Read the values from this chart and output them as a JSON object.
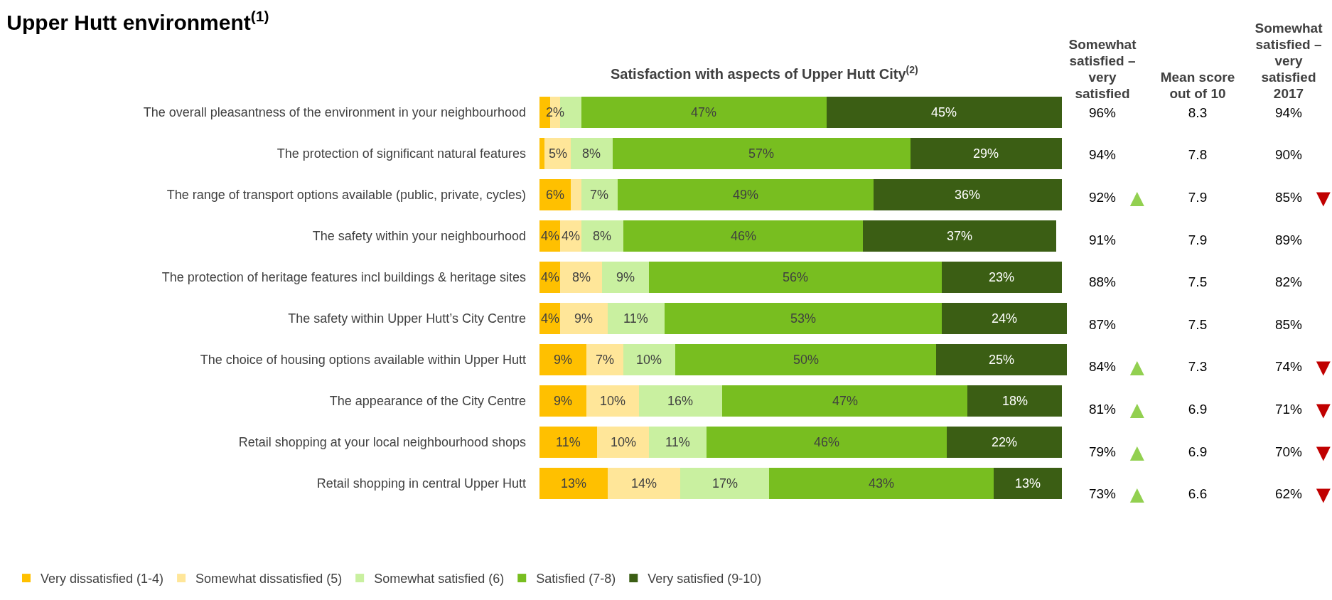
{
  "chart_data": [
    {
      "type": "bar",
      "title": "Upper Hutt environment$^{(1)}$",
      "subtitle": "Satisfaction with aspects of Upper Hutt City$^{(2)}$",
      "orientation": "horizontal",
      "stacked": true,
      "legend": "bottom left",
      "grid": false,
      "tick_labels": "y",
      "categories": [
        "The overall pleasantness of the environment in your neighbourhood",
        "The protection of significant natural features",
        "The range of transport options available (public, private, cycles)",
        "The safety within your neighbourhood",
        "The protection of heritage features incl buildings & heritage sites",
        "The safety within Upper Hutt’s City Centre",
        "The choice of housing options available within Upper Hutt",
        "The appearance of the City Centre",
        "Retail shopping at your local neighbourhood shops",
        "Retail shopping in central Upper Hutt"
      ],
      "series": [
        {
          "name": "Very dissatisfied (1-4)",
          "color": "#ffc000",
          "values": [
            2,
            1,
            6,
            4,
            4,
            4,
            9,
            9,
            11,
            13
          ],
          "value_labels": [
            null,
            null,
            "6%",
            "4%",
            "4%",
            "4%",
            "9%",
            "9%",
            "11%",
            "13%"
          ]
        },
        {
          "name": "Somewhat dissatisfied (5)",
          "color": "#ffe699",
          "values": [
            2,
            5,
            2,
            4,
            8,
            9,
            7,
            10,
            10,
            14
          ],
          "value_labels": [
            "2%",
            "5%",
            null,
            "4%",
            "8%",
            "9%",
            "7%",
            "10%",
            "10%",
            "14%"
          ]
        },
        {
          "name": "Somewhat satisfied (6)",
          "color": "#c9f0a0",
          "values": [
            4,
            8,
            7,
            8,
            9,
            11,
            10,
            16,
            11,
            17
          ],
          "value_labels": [
            null,
            "8%",
            "7%",
            "8%",
            "9%",
            "11%",
            "10%",
            "16%",
            "11%",
            "17%"
          ]
        },
        {
          "name": "Satisfied (7-8)",
          "color": "#78be20",
          "values": [
            47,
            57,
            49,
            46,
            56,
            53,
            50,
            47,
            46,
            43
          ],
          "value_labels": [
            "47%",
            "57%",
            "49%",
            "46%",
            "56%",
            "53%",
            "50%",
            "47%",
            "46%",
            "43%"
          ]
        },
        {
          "name": "Very satisfied (9-10)",
          "color": "#3b5e14",
          "values": [
            45,
            29,
            36,
            37,
            23,
            24,
            25,
            18,
            22,
            13
          ],
          "value_labels": [
            "45%",
            "29%",
            "36%",
            "37%",
            "23%",
            "24%",
            "25%",
            "18%",
            "22%",
            "13%"
          ]
        }
      ]
    },
    {
      "type": "other",
      "title": "Somewhat satisfied – very satisfied",
      "annotations": [
        "▲"
      ],
      "colors": [
        null,
        null,
        "#92d050",
        null,
        null,
        null,
        "#92d050",
        "#92d050",
        "#92d050",
        "#92d050"
      ],
      "categories": [
        null,
        null,
        null,
        null,
        null,
        null,
        null,
        null,
        null,
        null
      ],
      "values": [
        96,
        94,
        92,
        91,
        88,
        87,
        84,
        81,
        79,
        73
      ],
      "value_labels": [
        "96%",
        "94%",
        "92%",
        "91%",
        "88%",
        "87%",
        "84%",
        "81%",
        "79%",
        "73%"
      ]
    },
    {
      "type": "other",
      "title": "Mean score out of 10",
      "categories": [
        null,
        null,
        null,
        null,
        null,
        null,
        null,
        null,
        null,
        null
      ],
      "values": [
        8.3,
        7.8,
        7.9,
        7.9,
        7.5,
        7.5,
        7.3,
        6.9,
        6.9,
        6.6
      ],
      "data_labels": true
    },
    {
      "type": "other",
      "title": "Somewhat satisfied – very satisfied 2017",
      "annotations": [
        "▼"
      ],
      "colors": [
        null,
        null,
        "#c00000",
        null,
        null,
        null,
        "#c00000",
        "#c00000",
        "#c00000",
        "#c00000"
      ],
      "categories": [
        null,
        null,
        null,
        null,
        null,
        null,
        null,
        null,
        null,
        null
      ],
      "values": [
        94,
        90,
        85,
        89,
        82,
        85,
        74,
        71,
        70,
        62
      ],
      "value_labels": [
        "94%",
        "90%",
        "85%",
        "89%",
        "82%",
        "85%",
        "74%",
        "71%",
        "70%",
        "62%"
      ]
    }
  ]
}
